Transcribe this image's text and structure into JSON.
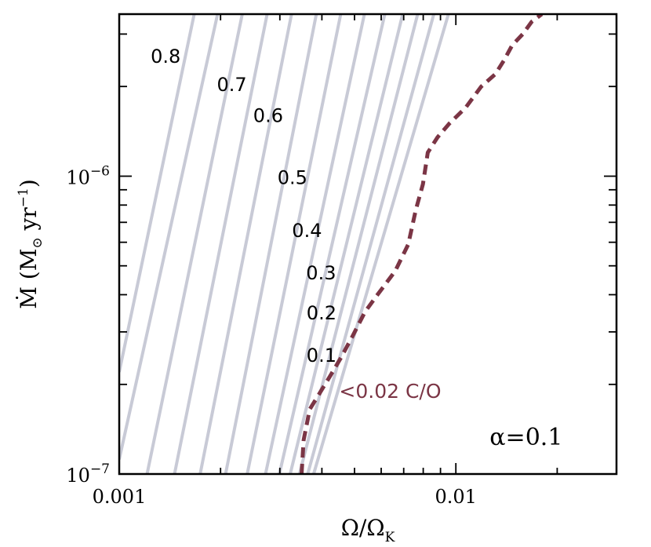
{
  "chart_data": {
    "type": "line",
    "title": "",
    "xlabel": "Ω/Ω",
    "xlabel_sub": "K",
    "ylabel": "Ṁ (M",
    "ylabel_sub": "⊙",
    "ylabel_tail": " yr",
    "ylabel_sup": "−1",
    "ylabel_close": ")",
    "x_scale": "log",
    "y_scale": "log",
    "xlim": [
      0.001,
      0.03
    ],
    "ylim": [
      1e-07,
      3.5e-06
    ],
    "x_ticks": [
      {
        "value": 0.001,
        "label": "0.001"
      },
      {
        "value": 0.01,
        "label": "0.01"
      }
    ],
    "y_ticks": [
      {
        "value": 1e-07,
        "base": "10",
        "exp": "−7"
      },
      {
        "value": 1e-06,
        "base": "10",
        "exp": "−6"
      }
    ],
    "grid": false,
    "contour_color": "#c8cad6",
    "boundary_color": "#7b3545",
    "contours": [
      {
        "x": [
          0.001,
          0.00167
        ],
        "y": [
          2.2e-07,
          3.5e-06
        ]
      },
      {
        "x": [
          0.001,
          0.00196
        ],
        "y": [
          1.12e-07,
          3.5e-06
        ]
      },
      {
        "x": [
          0.00121,
          0.00232
        ],
        "y": [
          1e-07,
          3.5e-06
        ]
      },
      {
        "x": [
          0.00146,
          0.00275
        ],
        "y": [
          1e-07,
          3.5e-06
        ]
      },
      {
        "x": [
          0.00174,
          0.00325
        ],
        "y": [
          1e-07,
          3.5e-06
        ]
      },
      {
        "x": [
          0.00207,
          0.00385
        ],
        "y": [
          1e-07,
          3.5e-06
        ]
      },
      {
        "x": [
          0.0024,
          0.00455
        ],
        "y": [
          1e-07,
          3.5e-06
        ]
      },
      {
        "x": [
          0.00272,
          0.00535
        ],
        "y": [
          1e-07,
          3.5e-06
        ]
      },
      {
        "x": [
          0.00299,
          0.00615
        ],
        "y": [
          1e-07,
          3.5e-06
        ]
      },
      {
        "x": [
          0.00322,
          0.00695
        ],
        "y": [
          1e-07,
          3.5e-06
        ]
      },
      {
        "x": [
          0.00343,
          0.0077
        ],
        "y": [
          1e-07,
          3.5e-06
        ]
      },
      {
        "x": [
          0.00363,
          0.0086
        ],
        "y": [
          1e-07,
          3.5e-06
        ]
      },
      {
        "x": [
          0.00378,
          0.0095
        ],
        "y": [
          1e-07,
          3.5e-06
        ]
      }
    ],
    "contour_labels": [
      {
        "text": "0.8",
        "x": 0.00124,
        "y": 2.4e-06
      },
      {
        "text": "0.7",
        "x": 0.00195,
        "y": 1.93e-06
      },
      {
        "text": "0.6",
        "x": 0.0025,
        "y": 1.52e-06
      },
      {
        "text": "0.5",
        "x": 0.00295,
        "y": 9.4e-07
      },
      {
        "text": "0.4",
        "x": 0.00326,
        "y": 6.25e-07
      },
      {
        "text": "0.3",
        "x": 0.00359,
        "y": 4.5e-07
      },
      {
        "text": "0.2",
        "x": 0.0036,
        "y": 3.3e-07
      },
      {
        "text": "0.1",
        "x": 0.0036,
        "y": 2.38e-07
      }
    ],
    "series": [
      {
        "name": "<0.02 C/O",
        "style": "dashed",
        "x": [
          0.00348,
          0.00353,
          0.00368,
          0.00392,
          0.00425,
          0.00455,
          0.00493,
          0.00537,
          0.00585,
          0.0066,
          0.00722,
          0.0076,
          0.00798,
          0.00805,
          0.00825,
          0.00882,
          0.00955,
          0.0107,
          0.0119,
          0.0131,
          0.0139,
          0.0147,
          0.0158,
          0.0168,
          0.018
        ],
        "y": [
          1e-07,
          1.3e-07,
          1.65e-07,
          1.85e-07,
          2.15e-07,
          2.45e-07,
          2.9e-07,
          3.5e-07,
          4e-07,
          4.8e-07,
          5.9e-07,
          7.7e-07,
          9.4e-07,
          1e-06,
          1.2e-06,
          1.35e-06,
          1.5e-06,
          1.7e-06,
          2e-06,
          2.2e-06,
          2.45e-06,
          2.75e-06,
          3e-06,
          3.3e-06,
          3.5e-06
        ]
      }
    ],
    "annotations": [
      {
        "text": "<0.02 C/O",
        "x": 0.0045,
        "y": 1.8e-07
      },
      {
        "text": "α=0.1",
        "x": 0.0126,
        "y": 1.25e-07
      }
    ]
  }
}
